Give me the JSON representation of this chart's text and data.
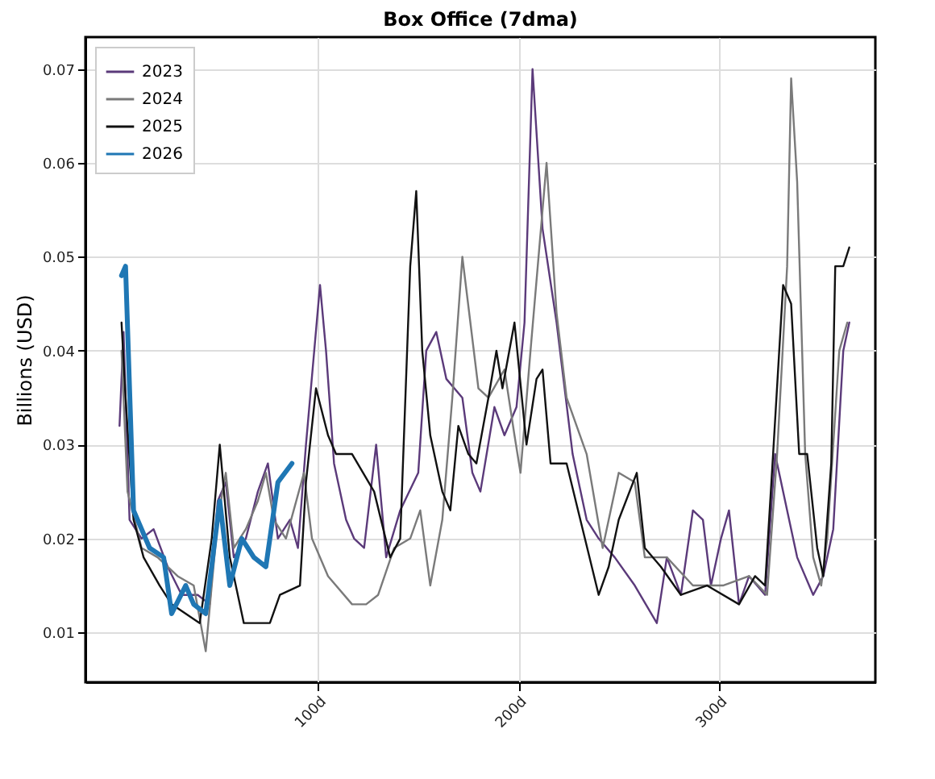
{
  "chart_data": {
    "type": "line",
    "title": "Box Office (7dma)",
    "ylabel": "Billions (USD)",
    "xlim": [
      -16,
      378
    ],
    "xticks": [
      {
        "value": 100,
        "label": "100d"
      },
      {
        "value": 200,
        "label": "200d"
      },
      {
        "value": 300,
        "label": "300d"
      }
    ],
    "ylim": [
      0.0047,
      0.0734
    ],
    "yticks": [
      0.01,
      0.02,
      0.03,
      0.04,
      0.05,
      0.06,
      0.07
    ],
    "grid": true,
    "legend": "top left",
    "series": [
      {
        "name": "2023",
        "color": "#5b3a7a",
        "x": [
          1,
          3,
          6,
          12,
          18,
          25,
          32,
          40,
          46,
          50,
          54,
          58,
          64,
          70,
          75,
          80,
          86,
          90,
          94,
          101,
          104,
          108,
          114,
          118,
          123,
          129,
          134,
          141,
          150,
          154,
          159,
          164,
          172,
          177,
          181,
          188,
          193,
          199,
          203,
          207,
          212,
          219,
          227,
          234,
          240,
          248,
          258,
          269,
          274,
          281,
          287,
          292,
          296,
          301,
          305,
          310,
          315,
          323,
          328,
          334,
          339,
          347,
          352,
          357,
          362,
          365
        ],
        "values": [
          0.032,
          0.042,
          0.022,
          0.02,
          0.021,
          0.017,
          0.014,
          0.014,
          0.013,
          0.024,
          0.026,
          0.018,
          0.02,
          0.025,
          0.028,
          0.02,
          0.022,
          0.019,
          0.03,
          0.047,
          0.04,
          0.028,
          0.022,
          0.02,
          0.019,
          0.03,
          0.018,
          0.023,
          0.027,
          0.04,
          0.042,
          0.037,
          0.035,
          0.027,
          0.025,
          0.034,
          0.031,
          0.034,
          0.043,
          0.07,
          0.053,
          0.043,
          0.029,
          0.022,
          0.02,
          0.018,
          0.015,
          0.011,
          0.018,
          0.014,
          0.023,
          0.022,
          0.015,
          0.02,
          0.023,
          0.013,
          0.016,
          0.014,
          0.029,
          0.023,
          0.018,
          0.014,
          0.016,
          0.021,
          0.04,
          0.043
        ]
      },
      {
        "name": "2024",
        "color": "#7a7a7a",
        "x": [
          2,
          5,
          12,
          20,
          30,
          38,
          44,
          50,
          54,
          58,
          64,
          70,
          74,
          78,
          84,
          93,
          97,
          105,
          117,
          124,
          130,
          138,
          146,
          151,
          156,
          162,
          167,
          172,
          180,
          185,
          193,
          198,
          201,
          206,
          214,
          219,
          224,
          234,
          242,
          250,
          258,
          263,
          274,
          287,
          302,
          315,
          324,
          329,
          334,
          336,
          339,
          343,
          347,
          351,
          354,
          360,
          364
        ],
        "values": [
          0.04,
          0.025,
          0.019,
          0.018,
          0.016,
          0.015,
          0.008,
          0.022,
          0.027,
          0.019,
          0.021,
          0.024,
          0.027,
          0.022,
          0.02,
          0.027,
          0.02,
          0.016,
          0.013,
          0.013,
          0.014,
          0.019,
          0.02,
          0.023,
          0.015,
          0.022,
          0.035,
          0.05,
          0.036,
          0.035,
          0.038,
          0.031,
          0.027,
          0.04,
          0.06,
          0.044,
          0.035,
          0.029,
          0.019,
          0.027,
          0.026,
          0.018,
          0.018,
          0.015,
          0.015,
          0.016,
          0.014,
          0.029,
          0.049,
          0.069,
          0.058,
          0.029,
          0.018,
          0.015,
          0.02,
          0.04,
          0.043
        ]
      },
      {
        "name": "2025",
        "color": "#111111",
        "x": [
          2,
          4,
          8,
          13,
          21,
          27,
          41,
          47,
          51,
          56,
          63,
          76,
          81,
          91,
          94,
          99,
          105,
          109,
          117,
          128,
          136,
          141,
          146,
          149,
          152,
          156,
          162,
          166,
          170,
          175,
          179,
          185,
          189,
          192,
          198,
          204,
          209,
          212,
          216,
          224,
          232,
          240,
          245,
          250,
          259,
          263,
          271,
          281,
          294,
          310,
          318,
          323,
          327,
          332,
          336,
          340,
          344,
          349,
          352,
          356,
          358,
          362,
          365
        ],
        "values": [
          0.043,
          0.035,
          0.022,
          0.018,
          0.015,
          0.013,
          0.011,
          0.02,
          0.03,
          0.018,
          0.011,
          0.011,
          0.014,
          0.015,
          0.026,
          0.036,
          0.031,
          0.029,
          0.029,
          0.025,
          0.018,
          0.02,
          0.049,
          0.057,
          0.04,
          0.031,
          0.025,
          0.023,
          0.032,
          0.029,
          0.028,
          0.035,
          0.04,
          0.036,
          0.043,
          0.03,
          0.037,
          0.038,
          0.028,
          0.028,
          0.021,
          0.014,
          0.017,
          0.022,
          0.027,
          0.019,
          0.017,
          0.014,
          0.015,
          0.013,
          0.016,
          0.015,
          0.029,
          0.047,
          0.045,
          0.029,
          0.029,
          0.019,
          0.016,
          0.028,
          0.049,
          0.049,
          0.051
        ]
      },
      {
        "name": "2026",
        "color": "#1f77b4",
        "x": [
          2,
          4,
          8,
          16,
          23,
          27,
          34,
          38,
          44,
          51,
          56,
          62,
          68,
          74,
          80,
          87
        ],
        "values": [
          0.048,
          0.049,
          0.023,
          0.019,
          0.018,
          0.012,
          0.015,
          0.013,
          0.012,
          0.024,
          0.015,
          0.02,
          0.018,
          0.017,
          0.026,
          0.028
        ]
      }
    ]
  }
}
